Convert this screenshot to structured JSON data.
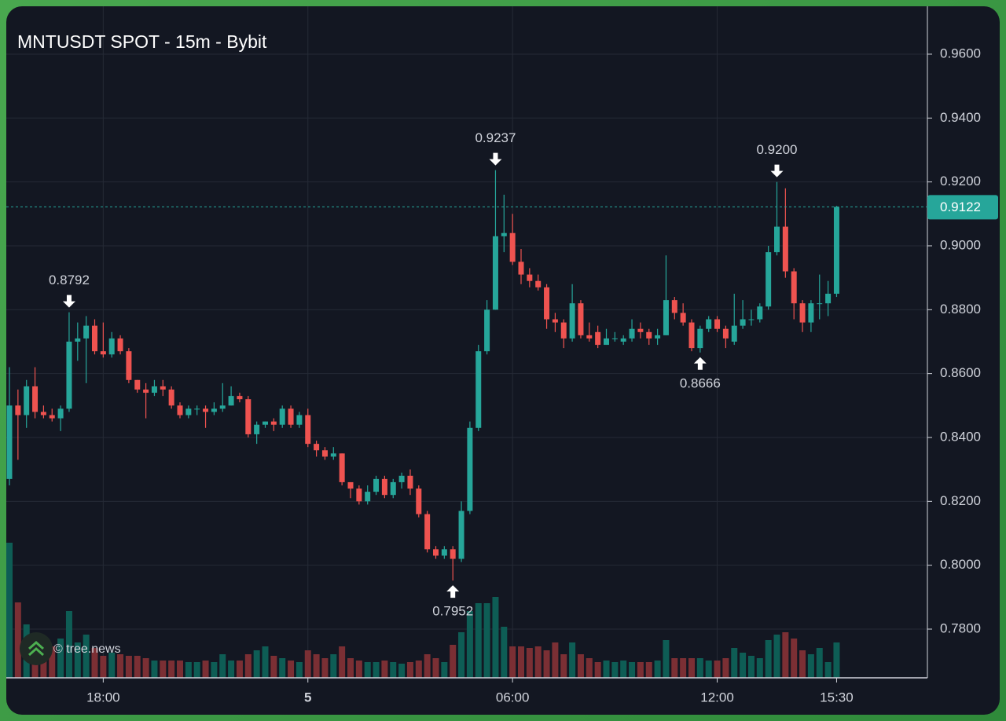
{
  "chart_data": {
    "type": "candlestick",
    "title": "MNTUSDT SPOT - 15m - Bybit",
    "watermark": "© tree.news",
    "categories": [
      null,
      null,
      null,
      null,
      null,
      null,
      null,
      null,
      null,
      null,
      null,
      "18:00",
      null,
      null,
      null,
      null,
      null,
      null,
      null,
      null,
      null,
      null,
      null,
      null,
      null,
      null,
      null,
      null,
      null,
      null,
      null,
      null,
      null,
      null,
      null,
      "5",
      null,
      null,
      null,
      null,
      null,
      null,
      null,
      null,
      null,
      null,
      null,
      null,
      null,
      null,
      null,
      null,
      null,
      null,
      null,
      null,
      null,
      null,
      null,
      "06:00",
      null,
      null,
      null,
      null,
      null,
      null,
      null,
      null,
      null,
      null,
      null,
      null,
      null,
      null,
      null,
      null,
      null,
      null,
      null,
      null,
      null,
      null,
      null,
      "12:00",
      null,
      null,
      null,
      null,
      null,
      null,
      null,
      null,
      null,
      null,
      null,
      null,
      null,
      "15:30"
    ],
    "open": [
      0.827,
      0.85,
      0.847,
      0.856,
      0.848,
      0.847,
      0.846,
      0.849,
      0.87,
      0.871,
      0.875,
      0.867,
      0.866,
      0.871,
      0.867,
      0.858,
      0.855,
      0.854,
      0.856,
      0.855,
      0.85,
      0.847,
      0.849,
      0.849,
      0.848,
      0.849,
      0.85,
      0.853,
      0.852,
      0.841,
      0.844,
      0.845,
      0.844,
      0.849,
      0.844,
      0.847,
      0.838,
      0.836,
      0.834,
      0.835,
      0.826,
      0.824,
      0.82,
      0.823,
      0.827,
      0.822,
      0.826,
      0.828,
      0.824,
      0.816,
      0.805,
      0.803,
      0.805,
      0.802,
      0.817,
      0.843,
      0.867,
      0.88,
      0.903,
      0.904,
      0.895,
      0.891,
      0.889,
      0.887,
      0.877,
      0.876,
      0.871,
      0.882,
      0.872,
      0.873,
      0.869,
      0.871,
      0.87,
      0.871,
      0.874,
      0.873,
      0.871,
      0.872,
      0.883,
      0.879,
      0.876,
      0.868,
      0.874,
      0.877,
      0.874,
      0.87,
      0.875,
      0.877,
      0.877,
      0.881,
      0.898,
      0.906,
      0.892,
      0.882,
      0.876,
      0.882,
      0.882,
      0.885
    ],
    "high": [
      0.862,
      0.855,
      0.858,
      0.862,
      0.85,
      0.849,
      0.85,
      0.8792,
      0.876,
      0.878,
      0.877,
      0.876,
      0.873,
      0.872,
      0.868,
      0.858,
      0.857,
      0.858,
      0.858,
      0.856,
      0.851,
      0.85,
      0.85,
      0.85,
      0.851,
      0.857,
      0.856,
      0.854,
      0.853,
      0.845,
      0.845,
      0.846,
      0.85,
      0.85,
      0.848,
      0.849,
      0.839,
      0.837,
      0.837,
      0.835,
      0.826,
      0.825,
      0.825,
      0.828,
      0.828,
      0.827,
      0.829,
      0.83,
      0.825,
      0.817,
      0.806,
      0.806,
      0.806,
      0.82,
      0.845,
      0.869,
      0.883,
      0.9237,
      0.916,
      0.91,
      0.899,
      0.893,
      0.891,
      0.888,
      0.879,
      0.877,
      0.888,
      0.883,
      0.876,
      0.875,
      0.874,
      0.873,
      0.872,
      0.877,
      0.876,
      0.874,
      0.874,
      0.897,
      0.884,
      0.882,
      0.877,
      0.875,
      0.878,
      0.878,
      0.875,
      0.885,
      0.883,
      0.88,
      0.882,
      0.9,
      0.92,
      0.918,
      0.893,
      0.883,
      0.883,
      0.891,
      0.889,
      0.9125
    ],
    "low": [
      0.825,
      0.833,
      0.843,
      0.846,
      0.846,
      0.845,
      0.842,
      0.848,
      0.864,
      0.857,
      0.866,
      0.865,
      0.865,
      0.866,
      0.857,
      0.854,
      0.846,
      0.853,
      0.853,
      0.849,
      0.846,
      0.846,
      0.847,
      0.843,
      0.847,
      0.848,
      0.85,
      0.851,
      0.84,
      0.838,
      0.843,
      0.842,
      0.843,
      0.843,
      0.843,
      0.837,
      0.834,
      0.833,
      0.833,
      0.825,
      0.821,
      0.819,
      0.819,
      0.822,
      0.821,
      0.821,
      0.824,
      0.822,
      0.815,
      0.804,
      0.802,
      0.802,
      0.7952,
      0.801,
      0.816,
      0.842,
      0.866,
      0.88,
      0.898,
      0.894,
      0.888,
      0.887,
      0.886,
      0.874,
      0.873,
      0.868,
      0.87,
      0.871,
      0.87,
      0.868,
      0.869,
      0.87,
      0.869,
      0.87,
      0.871,
      0.869,
      0.869,
      0.872,
      0.877,
      0.875,
      0.867,
      0.8666,
      0.873,
      0.873,
      0.868,
      0.869,
      0.874,
      0.875,
      0.876,
      0.88,
      0.897,
      0.89,
      0.877,
      0.873,
      0.873,
      0.877,
      0.878,
      0.884
    ],
    "close": [
      0.85,
      0.847,
      0.856,
      0.848,
      0.847,
      0.846,
      0.849,
      0.87,
      0.871,
      0.875,
      0.867,
      0.866,
      0.871,
      0.867,
      0.858,
      0.855,
      0.854,
      0.856,
      0.855,
      0.85,
      0.847,
      0.849,
      0.849,
      0.848,
      0.849,
      0.85,
      0.853,
      0.852,
      0.841,
      0.844,
      0.845,
      0.844,
      0.849,
      0.844,
      0.847,
      0.838,
      0.836,
      0.834,
      0.835,
      0.826,
      0.824,
      0.82,
      0.823,
      0.827,
      0.822,
      0.826,
      0.828,
      0.824,
      0.816,
      0.805,
      0.803,
      0.805,
      0.802,
      0.817,
      0.843,
      0.867,
      0.88,
      0.903,
      0.904,
      0.895,
      0.891,
      0.889,
      0.887,
      0.877,
      0.876,
      0.871,
      0.882,
      0.872,
      0.871,
      0.869,
      0.871,
      0.871,
      0.871,
      0.874,
      0.873,
      0.871,
      0.872,
      0.883,
      0.879,
      0.876,
      0.868,
      0.874,
      0.877,
      0.874,
      0.871,
      0.875,
      0.877,
      0.877,
      0.881,
      0.898,
      0.906,
      0.892,
      0.882,
      0.876,
      0.882,
      0.882,
      0.885,
      0.9122
    ],
    "volume": [
      172,
      96,
      68,
      40,
      28,
      40,
      50,
      85,
      45,
      55,
      38,
      28,
      32,
      30,
      28,
      28,
      25,
      22,
      22,
      22,
      22,
      20,
      20,
      22,
      20,
      30,
      22,
      22,
      30,
      35,
      40,
      28,
      25,
      22,
      20,
      35,
      30,
      25,
      30,
      40,
      25,
      22,
      20,
      20,
      22,
      20,
      18,
      20,
      22,
      30,
      25,
      20,
      42,
      58,
      85,
      95,
      95,
      103,
      65,
      40,
      40,
      38,
      40,
      35,
      45,
      30,
      45,
      30,
      25,
      20,
      22,
      20,
      22,
      20,
      20,
      20,
      22,
      48,
      25,
      25,
      25,
      25,
      22,
      22,
      25,
      38,
      32,
      28,
      25,
      48,
      55,
      58,
      50,
      35,
      30,
      38,
      20,
      45
    ],
    "up_color": "#26a69a",
    "down_color": "#ef5350",
    "volume_up_color": "#0e5d55",
    "volume_down_color": "#7b2f34",
    "ylim": [
      0.765,
      0.9745
    ],
    "yticks": [
      {
        "value": 0.78,
        "label": "0.7800"
      },
      {
        "value": 0.8,
        "label": "0.8000"
      },
      {
        "value": 0.82,
        "label": "0.8200"
      },
      {
        "value": 0.84,
        "label": "0.8400"
      },
      {
        "value": 0.86,
        "label": "0.8600"
      },
      {
        "value": 0.88,
        "label": "0.8800"
      },
      {
        "value": 0.9,
        "label": "0.9000"
      },
      {
        "value": 0.92,
        "label": "0.9200"
      },
      {
        "value": 0.94,
        "label": "0.9400"
      },
      {
        "value": 0.96,
        "label": "0.9600"
      }
    ],
    "last_price": {
      "value": 0.9122,
      "label": "0.9122"
    },
    "annotations": [
      {
        "index": 7,
        "value": 0.8792,
        "label": "0.8792",
        "side": "above"
      },
      {
        "index": 52,
        "value": 0.7952,
        "label": "0.7952",
        "side": "below"
      },
      {
        "index": 57,
        "value": 0.9237,
        "label": "0.9237",
        "side": "above"
      },
      {
        "index": 81,
        "value": 0.8666,
        "label": "0.8666",
        "side": "below"
      },
      {
        "index": 90,
        "value": 0.92,
        "label": "0.9200",
        "side": "above"
      }
    ],
    "grid": true
  }
}
